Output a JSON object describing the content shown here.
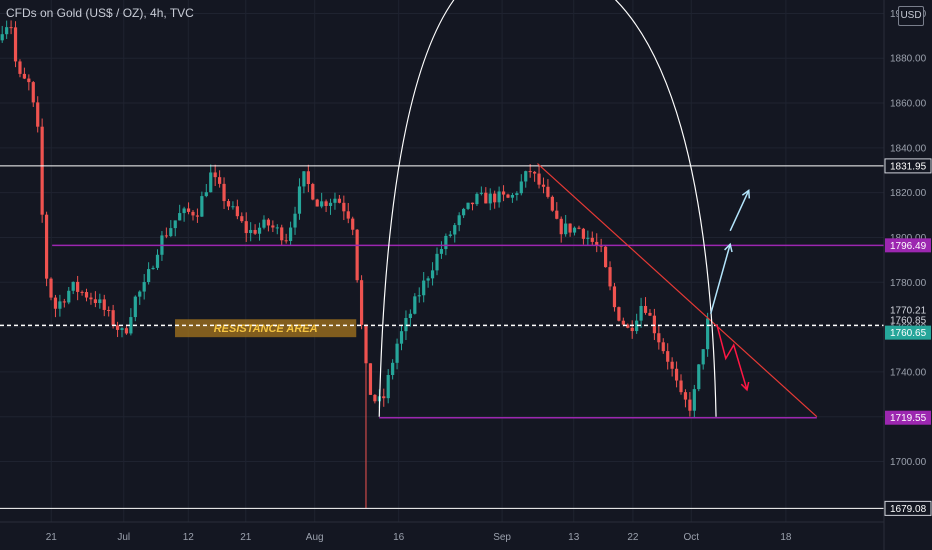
{
  "title": "CFDs on Gold (US$ / OZ), 4h, TVC",
  "currency": "USD",
  "colors": {
    "background": "#141722",
    "grid": "#1f2330",
    "up": "#26a69a",
    "down": "#ef5350",
    "white_level": "#ffffff",
    "purple_level": "#9c27b0",
    "trendline": "#e53935",
    "arc": "#ffffff",
    "dashed_level": "#ffffff",
    "resistance_box": "#a6761d",
    "resistance_text": "#f5c542",
    "arrow_up": "#b3e5fc",
    "arrow_down": "#ff1744",
    "current_price": "#26a69a"
  },
  "chart_data": {
    "type": "candlestick",
    "y_axis_ticks": [
      "1900.00",
      "1880.00",
      "1860.00",
      "1840.00",
      "1820.00",
      "1800.00",
      "1780.00",
      "1760.00",
      "1740.00",
      "1720.00",
      "1700.00"
    ],
    "y_axis_range": [
      1673,
      1906
    ],
    "x_axis_ticks": [
      "21",
      "Jul",
      "12",
      "21",
      "Aug",
      "16",
      "Sep",
      "13",
      "22",
      "Oct",
      "18"
    ],
    "x_range": [
      0,
      100
    ],
    "x_tick_positions": [
      5.8,
      14.0,
      21.3,
      27.8,
      35.6,
      45.1,
      56.8,
      64.9,
      71.6,
      78.2,
      88.9
    ],
    "candle_count": 160,
    "price_path": [
      [
        0,
        1888
      ],
      [
        0.7,
        1896
      ],
      [
        1.5,
        1895
      ],
      [
        2.2,
        1872
      ],
      [
        3.6,
        1868
      ],
      [
        4.6,
        1845
      ],
      [
        5.3,
        1786
      ],
      [
        6.4,
        1768
      ],
      [
        8.4,
        1778
      ],
      [
        11.2,
        1772
      ],
      [
        13.1,
        1762
      ],
      [
        14.3,
        1756
      ],
      [
        15.4,
        1772
      ],
      [
        16.6,
        1778
      ],
      [
        18.3,
        1798
      ],
      [
        20.5,
        1810
      ],
      [
        22.6,
        1812
      ],
      [
        24.1,
        1828
      ],
      [
        26.0,
        1815
      ],
      [
        28.3,
        1802
      ],
      [
        30.5,
        1806
      ],
      [
        32.7,
        1800
      ],
      [
        34.6,
        1827
      ],
      [
        36.3,
        1815
      ],
      [
        38.3,
        1818
      ],
      [
        40.1,
        1808
      ],
      [
        41.2,
        1758
      ],
      [
        41.6,
        1742
      ],
      [
        42.3,
        1728
      ],
      [
        43.5,
        1726
      ],
      [
        45.1,
        1752
      ],
      [
        47.3,
        1772
      ],
      [
        49.7,
        1792
      ],
      [
        52.0,
        1807
      ],
      [
        54.0,
        1817
      ],
      [
        56.4,
        1818
      ],
      [
        58.0,
        1817
      ],
      [
        60.2,
        1830
      ],
      [
        61.8,
        1820
      ],
      [
        63.4,
        1804
      ],
      [
        65.8,
        1804
      ],
      [
        68.2,
        1794
      ],
      [
        69.8,
        1768
      ],
      [
        71.4,
        1758
      ],
      [
        73.0,
        1772
      ],
      [
        74.4,
        1758
      ],
      [
        75.9,
        1745
      ],
      [
        77.3,
        1728
      ],
      [
        78.5,
        1724
      ],
      [
        79.6,
        1748
      ],
      [
        80.3,
        1762
      ]
    ],
    "levels": [
      {
        "label": "1831.95",
        "value": 1831.95,
        "style": "white"
      },
      {
        "label": "1796.49",
        "value": 1796.49,
        "style": "purple"
      },
      {
        "label": "1770.21",
        "value": 1770.21,
        "style": "plain"
      },
      {
        "label": "1760.85",
        "value": 1760.85,
        "style": "dashed"
      },
      {
        "label": "1760.65",
        "value": 1760.65,
        "style": "current"
      },
      {
        "label": "1719.55",
        "value": 1719.55,
        "style": "purple"
      },
      {
        "label": "1679.08",
        "value": 1679.08,
        "style": "white"
      }
    ],
    "annotations": {
      "resistance_area": {
        "label": "RESISTANCE AREA",
        "x_start": 19.8,
        "x_end": 40.3,
        "y_top": 1763.5,
        "y_bottom": 1755.5
      },
      "trendline": {
        "from": [
          60.8,
          1833
        ],
        "to": [
          92.4,
          1720
        ]
      },
      "arc": {
        "x_start": 42.9,
        "x_end": 81.0,
        "base": 1720,
        "peak": [
          59.0,
          1822
        ]
      },
      "support_line": {
        "x_start": 42.9,
        "x_end": 92.4,
        "value": 1719.55
      },
      "arrows_up": [
        {
          "from": [
            80.4,
            1766
          ],
          "to": [
            82.6,
            1797
          ]
        },
        {
          "from": [
            82.6,
            1803
          ],
          "to": [
            84.7,
            1821
          ]
        }
      ],
      "arrow_down": {
        "points": [
          [
            81.1,
            1761
          ],
          [
            82.1,
            1746
          ],
          [
            83.0,
            1752
          ],
          [
            84.5,
            1732
          ]
        ]
      }
    }
  }
}
